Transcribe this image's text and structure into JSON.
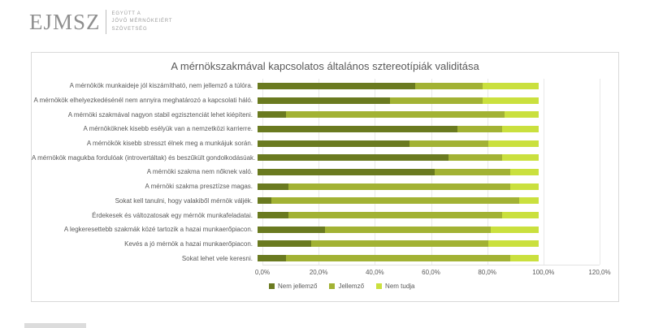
{
  "logo": {
    "acronym": "EJMSZ",
    "tagline_lines": [
      "Együtt a",
      "Jövő Mérnökeiért",
      "Szövetség"
    ]
  },
  "chart_data": {
    "type": "bar",
    "orientation": "horizontal",
    "stacked": true,
    "title": "A mérnökszakmával kapcsolatos általános sztereotípiák validitása",
    "categories": [
      "A mérnökök munkaideje jól kiszámítható, nem jellemző a túlóra.",
      "A mérnökök elhelyezkedésénél nem annyira meghatározó a kapcsolati háló.",
      "A mérnöki szakmával nagyon stabil egzisztenciát lehet kiépíteni.",
      "A mérnököknek kisebb esélyük van a nemzetközi karrierre.",
      "A mérnökök kisebb stresszt élnek meg a munkájuk során.",
      "A mérnökök magukba fordulóak (introvertáltak) és beszűkült gondolkodásúak.",
      "A mérnöki szakma nem nőknek való.",
      "A mérnöki szakma presztízse magas.",
      "Sokat kell tanulni, hogy valakiből mérnök váljék.",
      "Érdekesek és változatosak egy mérnök munkafeladatai.",
      "A legkeresettebb szakmák közé tartozik a hazai munkaerőpiacon.",
      "Kevés a jó mérnök a hazai munkaerőpiacon.",
      "Sokat lehet vele keresni."
    ],
    "series": [
      {
        "name": "Nem jellemző",
        "color": "#6a7a20",
        "values": [
          56,
          47,
          10,
          71,
          54,
          68,
          63,
          11,
          5,
          11,
          24,
          19,
          10
        ]
      },
      {
        "name": "Jellemző",
        "color": "#a2b234",
        "values": [
          24,
          33,
          78,
          16,
          28,
          19,
          27,
          79,
          88,
          76,
          59,
          63,
          80
        ]
      },
      {
        "name": "Nem tudja",
        "color": "#cae03e",
        "values": [
          20,
          20,
          12,
          13,
          18,
          13,
          10,
          10,
          7,
          13,
          17,
          18,
          10
        ]
      }
    ],
    "x_axis": {
      "min": 0,
      "max": 120,
      "unit": "%",
      "tick_labels": [
        "0,0%",
        "20,0%",
        "40,0%",
        "60,0%",
        "80,0%",
        "100,0%",
        "120,0%"
      ]
    },
    "legend": {
      "position": "bottom",
      "entries": [
        "Nem jellemző",
        "Jellemző",
        "Nem tudja"
      ]
    },
    "grid": true
  }
}
